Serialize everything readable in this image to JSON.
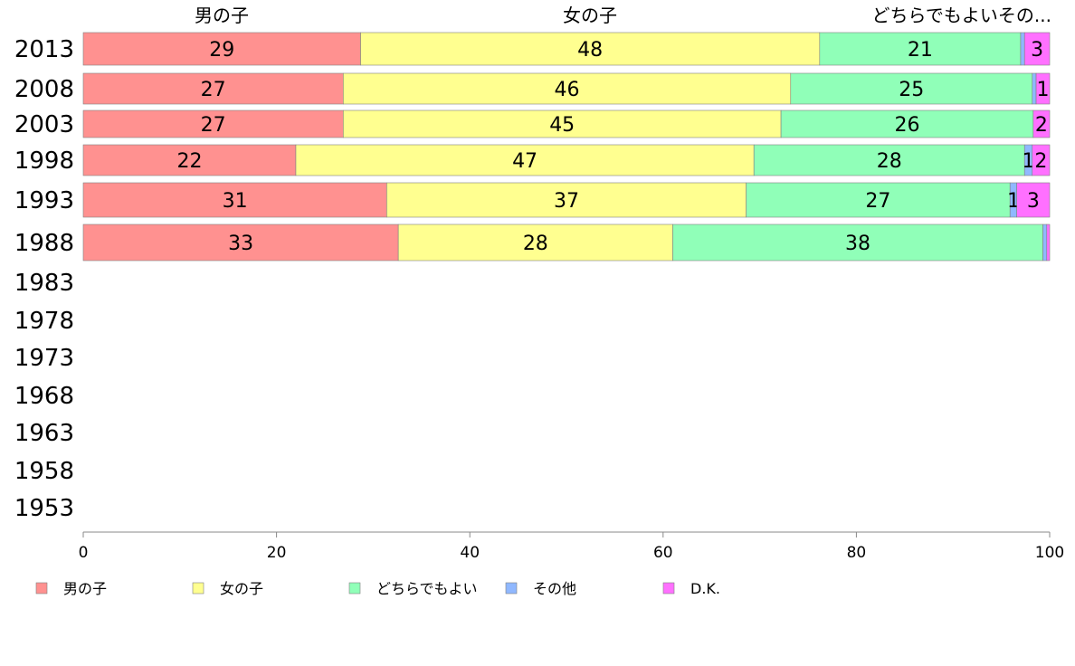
{
  "chart_data": {
    "type": "bar",
    "orientation": "horizontal",
    "stacked": true,
    "categories": [
      "2013",
      "2008",
      "2003",
      "1998",
      "1993",
      "1988",
      "1983",
      "1978",
      "1973",
      "1968",
      "1963",
      "1958",
      "1953"
    ],
    "series": [
      {
        "name": "男の子",
        "color": "#ff9190",
        "values": [
          28.7,
          26.9,
          26.9,
          22.0,
          31.4,
          32.6,
          null,
          null,
          null,
          null,
          null,
          null,
          null
        ],
        "labels": [
          "29",
          "27",
          "27",
          "22",
          "31",
          "33",
          "",
          "",
          "",
          "",
          "",
          "",
          ""
        ]
      },
      {
        "name": "女の子",
        "color": "#ffff90",
        "values": [
          47.5,
          46.3,
          45.3,
          47.4,
          37.2,
          28.4,
          null,
          null,
          null,
          null,
          null,
          null,
          null
        ],
        "labels": [
          "48",
          "46",
          "45",
          "47",
          "37",
          "28",
          "",
          "",
          "",
          "",
          "",
          "",
          ""
        ]
      },
      {
        "name": "どちらでもよい",
        "color": "#90ffb8",
        "values": [
          20.8,
          25.0,
          26.1,
          28.0,
          27.3,
          38.3,
          null,
          null,
          null,
          null,
          null,
          null,
          null
        ],
        "labels": [
          "21",
          "25",
          "26",
          "28",
          "27",
          "38",
          "",
          "",
          "",
          "",
          "",
          "",
          ""
        ]
      },
      {
        "name": "その他",
        "color": "#90b8ff",
        "values": [
          0.4,
          0.4,
          0.0,
          0.8,
          0.7,
          0.4,
          null,
          null,
          null,
          null,
          null,
          null,
          null
        ],
        "labels": [
          "",
          "",
          "",
          "1",
          "1",
          "",
          "",
          "",
          "",
          "",
          "",
          "",
          ""
        ]
      },
      {
        "name": "D.K.",
        "color": "#ff70ff",
        "values": [
          2.6,
          1.4,
          1.7,
          1.8,
          3.4,
          0.3,
          null,
          null,
          null,
          null,
          null,
          null,
          null
        ],
        "labels": [
          "3",
          "1",
          "2",
          "2",
          "3",
          "",
          "",
          "",
          "",
          "",
          "",
          "",
          ""
        ]
      }
    ],
    "top_headers": [
      "男の子",
      "女の子",
      "どちらでもよいその..."
    ],
    "xlim": [
      0,
      100
    ],
    "xticks": [
      "0",
      "20",
      "40",
      "60",
      "80",
      "100"
    ],
    "grid": false,
    "legend_position": "bottom"
  }
}
